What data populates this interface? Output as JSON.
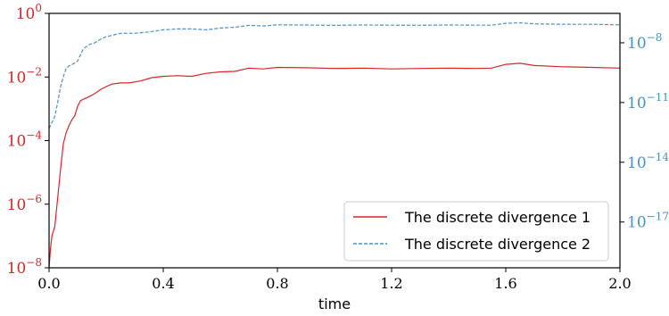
{
  "chart_data": {
    "type": "line",
    "xlabel": "time",
    "x_ticks": [
      "0.0",
      "0.4",
      "0.8",
      "1.2",
      "1.6",
      "2.0"
    ],
    "xlim": [
      0.0,
      2.0
    ],
    "left_axis": {
      "scale": "log",
      "ylim": [
        1e-08,
        1
      ],
      "color": "#d62728",
      "ticks": [
        {
          "value": 1e-08,
          "base": "10",
          "exp": "−8"
        },
        {
          "value": 1e-06,
          "base": "10",
          "exp": "−6"
        },
        {
          "value": 0.0001,
          "base": "10",
          "exp": "−4"
        },
        {
          "value": 0.01,
          "base": "10",
          "exp": "−2"
        },
        {
          "value": 1,
          "base": "10",
          "exp": "0"
        }
      ]
    },
    "right_axis": {
      "scale": "log",
      "ylim": [
        5e-20,
        3e-07
      ],
      "color": "#4a90c4",
      "ticks": [
        {
          "value": 1e-17,
          "base": "10",
          "exp": "−17"
        },
        {
          "value": 1e-14,
          "base": "10",
          "exp": "−14"
        },
        {
          "value": 1e-11,
          "base": "10",
          "exp": "−11"
        },
        {
          "value": 1e-08,
          "base": "10",
          "exp": "−8"
        }
      ]
    },
    "legend_position": "lower-right",
    "series": [
      {
        "name": "The discrete divergence 1",
        "color": "#d62728",
        "style": "solid",
        "axis": "left",
        "x": [
          0.0,
          0.005,
          0.01,
          0.02,
          0.03,
          0.04,
          0.05,
          0.06,
          0.07,
          0.08,
          0.09,
          0.1,
          0.11,
          0.12,
          0.14,
          0.16,
          0.18,
          0.2,
          0.22,
          0.25,
          0.28,
          0.32,
          0.36,
          0.4,
          0.45,
          0.5,
          0.55,
          0.6,
          0.65,
          0.7,
          0.75,
          0.8,
          0.9,
          1.0,
          1.1,
          1.2,
          1.3,
          1.4,
          1.5,
          1.55,
          1.6,
          1.65,
          1.7,
          1.8,
          1.9,
          2.0
        ],
        "y": [
          1e-08,
          4e-08,
          1e-07,
          2e-07,
          1.5e-06,
          1.2e-05,
          8e-05,
          0.00018,
          0.0003,
          0.00045,
          0.0006,
          0.0012,
          0.0018,
          0.002,
          0.0024,
          0.003,
          0.004,
          0.005,
          0.006,
          0.0065,
          0.0065,
          0.0075,
          0.0095,
          0.0105,
          0.011,
          0.0105,
          0.013,
          0.0145,
          0.015,
          0.019,
          0.018,
          0.02,
          0.0195,
          0.0185,
          0.019,
          0.018,
          0.0185,
          0.019,
          0.0185,
          0.019,
          0.025,
          0.027,
          0.023,
          0.021,
          0.02,
          0.019
        ]
      },
      {
        "name": "The discrete divergence 2",
        "color": "#4a90c4",
        "style": "dashed",
        "axis": "right",
        "x": [
          0.0,
          0.01,
          0.02,
          0.03,
          0.04,
          0.05,
          0.06,
          0.07,
          0.08,
          0.1,
          0.12,
          0.14,
          0.16,
          0.18,
          0.2,
          0.25,
          0.3,
          0.35,
          0.4,
          0.45,
          0.5,
          0.55,
          0.6,
          0.65,
          0.7,
          0.75,
          0.8,
          0.9,
          1.0,
          1.1,
          1.2,
          1.3,
          1.4,
          1.5,
          1.55,
          1.6,
          1.65,
          1.7,
          1.8,
          1.9,
          2.0
        ],
        "y": [
          5e-13,
          1e-12,
          2e-12,
          1e-11,
          6e-11,
          2e-10,
          5e-10,
          7e-10,
          8e-10,
          1.2e-09,
          5e-09,
          8e-09,
          1e-08,
          1.5e-08,
          2e-08,
          3e-08,
          3e-08,
          3.5e-08,
          4.5e-08,
          5e-08,
          5e-08,
          4.5e-08,
          5.5e-08,
          6e-08,
          7.5e-08,
          7e-08,
          8e-08,
          7.8e-08,
          7.5e-08,
          7.8e-08,
          7.7e-08,
          7.6e-08,
          7.8e-08,
          7.7e-08,
          7.7e-08,
          9.5e-08,
          1e-07,
          9e-08,
          8.5e-08,
          8.5e-08,
          8e-08
        ]
      }
    ]
  }
}
